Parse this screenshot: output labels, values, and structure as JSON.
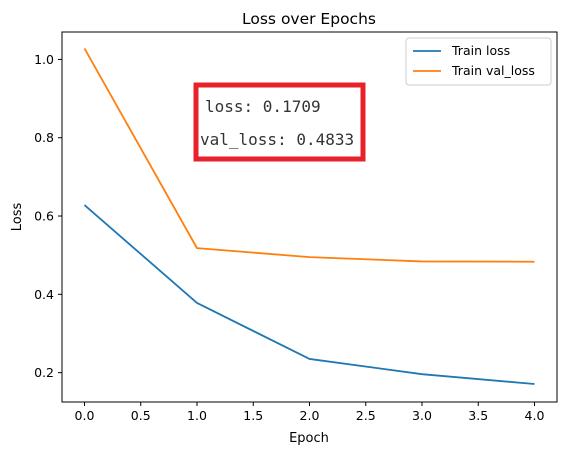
{
  "chart_data": {
    "type": "line",
    "title": "Loss over Epochs",
    "xlabel": "Epoch",
    "ylabel": "Loss",
    "xlim": [
      -0.2,
      4.2
    ],
    "ylim": [
      0.125,
      1.07
    ],
    "xticks": [
      0.0,
      0.5,
      1.0,
      1.5,
      2.0,
      2.5,
      3.0,
      3.5,
      4.0
    ],
    "xtick_labels": [
      "0.0",
      "0.5",
      "1.0",
      "1.5",
      "2.0",
      "2.5",
      "3.0",
      "3.5",
      "4.0"
    ],
    "yticks": [
      0.2,
      0.4,
      0.6,
      0.8,
      1.0
    ],
    "ytick_labels": [
      "0.2",
      "0.4",
      "0.6",
      "0.8",
      "1.0"
    ],
    "grid": false,
    "legend_position": "top-right",
    "x": [
      0,
      1,
      2,
      3,
      4
    ],
    "series": [
      {
        "name": "Train loss",
        "color": "#1f77b4",
        "values": [
          0.628,
          0.378,
          0.235,
          0.196,
          0.1709
        ]
      },
      {
        "name": "Train val_loss",
        "color": "#ff7f0e",
        "values": [
          1.028,
          0.518,
          0.495,
          0.484,
          0.4833
        ]
      }
    ],
    "annotation": {
      "lines": [
        "loss: 0.1709",
        "val_loss: 0.4833"
      ],
      "border_color": "#e8222a"
    }
  }
}
